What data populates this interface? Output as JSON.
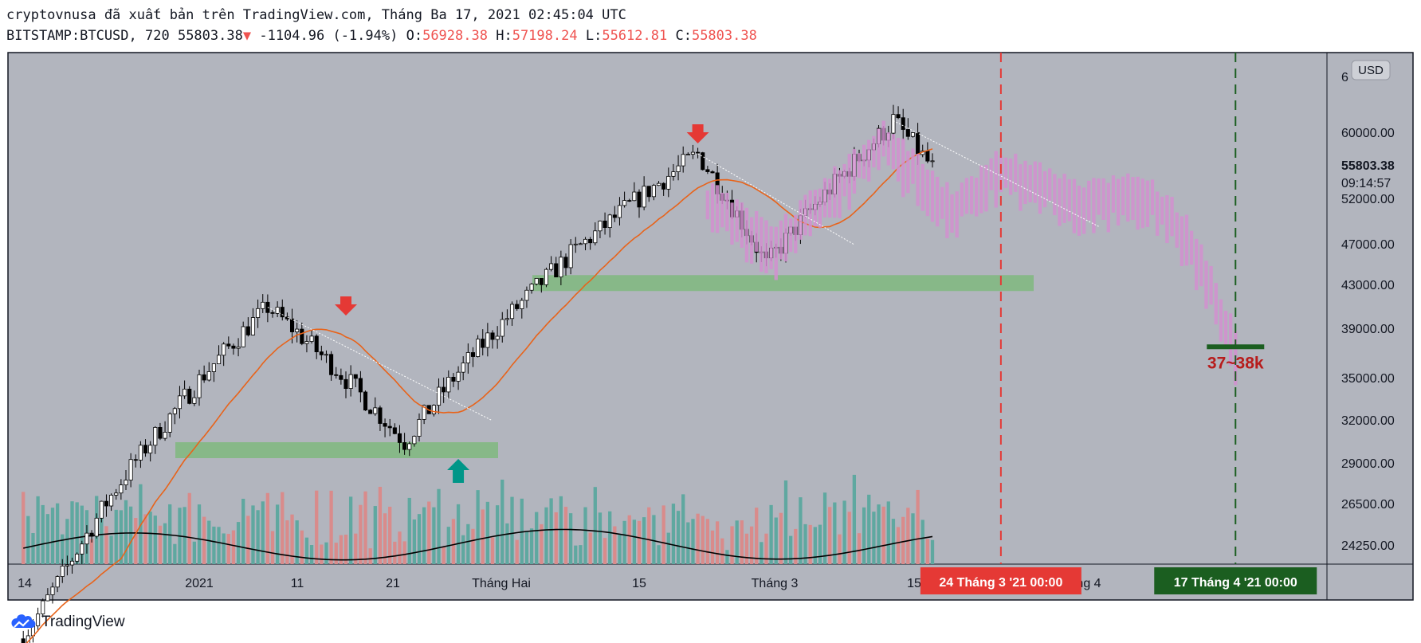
{
  "header": {
    "publish_line": "cryptovnusa đã xuất bản trên TradingView.com, Tháng Ba 17, 2021 02:45:04 UTC",
    "symbol": "BITSTAMP:BTCUSD, 720",
    "last": "55803.38",
    "change": "-1104.96 (-1.94%)",
    "o_label": "O:",
    "o": "56928.38",
    "h_label": "H:",
    "h": "57198.24",
    "l_label": "L:",
    "l": "55612.81",
    "c_label": "C:",
    "c": "55803.38"
  },
  "colors": {
    "plot_bg": "#b2b5be",
    "up": "#ffffff",
    "down": "#000000",
    "ma": "#e8631a",
    "ghost": "#d28fd0",
    "zone": "#7fb87f",
    "vol_up": "#5fa8a0",
    "vol_down": "#d98b8b",
    "red_arrow": "#e53935",
    "green_arrow": "#009688",
    "red_line": "#e53935",
    "green_line": "#1b5e20"
  },
  "chart_data": {
    "type": "candlestick",
    "currency_badge": "USD",
    "price_labels": [
      "60000.00",
      "52000.00",
      "47000.00",
      "43000.00",
      "39000.00",
      "35000.00",
      "32000.00",
      "29000.00",
      "26500.00",
      "24250.00"
    ],
    "top_price_partial": "6",
    "last_price_label": "55803.38",
    "countdown_label": "09:14:57",
    "x_labels": [
      "14",
      "2021",
      "11",
      "21",
      "Tháng Hai",
      "15",
      "Tháng 3",
      "15",
      "ng 4"
    ],
    "vline_red_label": "24 Tháng 3 '21   00:00",
    "vline_green_label": "17 Tháng 4 '21   00:00",
    "target_label": "37~38k",
    "support_zones": [
      [
        29500,
        30500
      ],
      [
        42500,
        44000
      ]
    ],
    "candles_ohlc_key_points": [
      {
        "date": "2020-12-14",
        "close": 19200
      },
      {
        "date": "2021-01-08",
        "close": 41000
      },
      {
        "date": "2021-01-22",
        "close": 30500
      },
      {
        "date": "2021-02-08",
        "close": 46000
      },
      {
        "date": "2021-02-21",
        "close": 57500
      },
      {
        "date": "2021-02-28",
        "close": 45000
      },
      {
        "date": "2021-03-13",
        "close": 61500
      },
      {
        "date": "2021-03-17",
        "close": 55803.38
      }
    ],
    "projection_end_price": 37500
  },
  "footer": {
    "brand": "TradingView"
  }
}
